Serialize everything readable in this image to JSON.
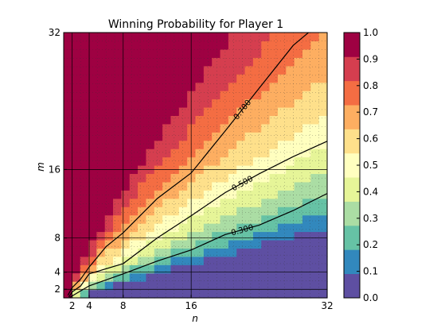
{
  "chart_data": {
    "type": "heatmap",
    "title": "Winning Probability for Player 1",
    "xlabel": "n",
    "ylabel": "m",
    "xlim": [
      1,
      32
    ],
    "ylim": [
      1,
      32
    ],
    "x_ticks": [
      2,
      4,
      8,
      16,
      32
    ],
    "y_ticks": [
      2,
      4,
      8,
      16,
      32
    ],
    "grid": true,
    "colorbar": {
      "min": 0.0,
      "max": 1.0,
      "ticks": [
        "0.0",
        "0.1",
        "0.2",
        "0.3",
        "0.4",
        "0.5",
        "0.6",
        "0.7",
        "0.8",
        "0.9",
        "1.0"
      ],
      "palette": [
        "#5e4fa2",
        "#3288bd",
        "#66c2a5",
        "#abdda4",
        "#e6f598",
        "#ffffbf",
        "#fee08b",
        "#fdae61",
        "#f46d43",
        "#d53e4f",
        "#9e0142"
      ]
    },
    "contours": [
      {
        "label": "0.700",
        "level": 0.7,
        "points": [
          [
            1.5,
            1.3
          ],
          [
            2,
            2.2
          ],
          [
            3,
            3.2
          ],
          [
            4,
            4.6
          ],
          [
            6,
            7
          ],
          [
            8,
            8.6
          ],
          [
            12,
            12.6
          ],
          [
            16,
            15.6
          ],
          [
            20,
            20.5
          ],
          [
            24,
            25.5
          ],
          [
            28,
            30.5
          ],
          [
            29.8,
            32
          ]
        ]
      },
      {
        "label": "0.500",
        "level": 0.5,
        "points": [
          [
            1.6,
            1.1
          ],
          [
            2,
            1.7
          ],
          [
            3,
            2.4
          ],
          [
            4,
            3.8
          ],
          [
            8,
            5.0
          ],
          [
            12,
            8.0
          ],
          [
            16,
            10.6
          ],
          [
            20,
            13.3
          ],
          [
            24,
            15.5
          ],
          [
            28,
            17.5
          ],
          [
            32,
            19.3
          ]
        ]
      },
      {
        "label": "0.300",
        "level": 0.3,
        "points": [
          [
            1.7,
            1.05
          ],
          [
            4,
            2.4
          ],
          [
            8,
            3.8
          ],
          [
            12,
            5.3
          ],
          [
            16,
            6.6
          ],
          [
            20,
            8.4
          ],
          [
            24,
            9.5
          ],
          [
            28,
            11.2
          ],
          [
            32,
            13.2
          ]
        ]
      }
    ]
  }
}
